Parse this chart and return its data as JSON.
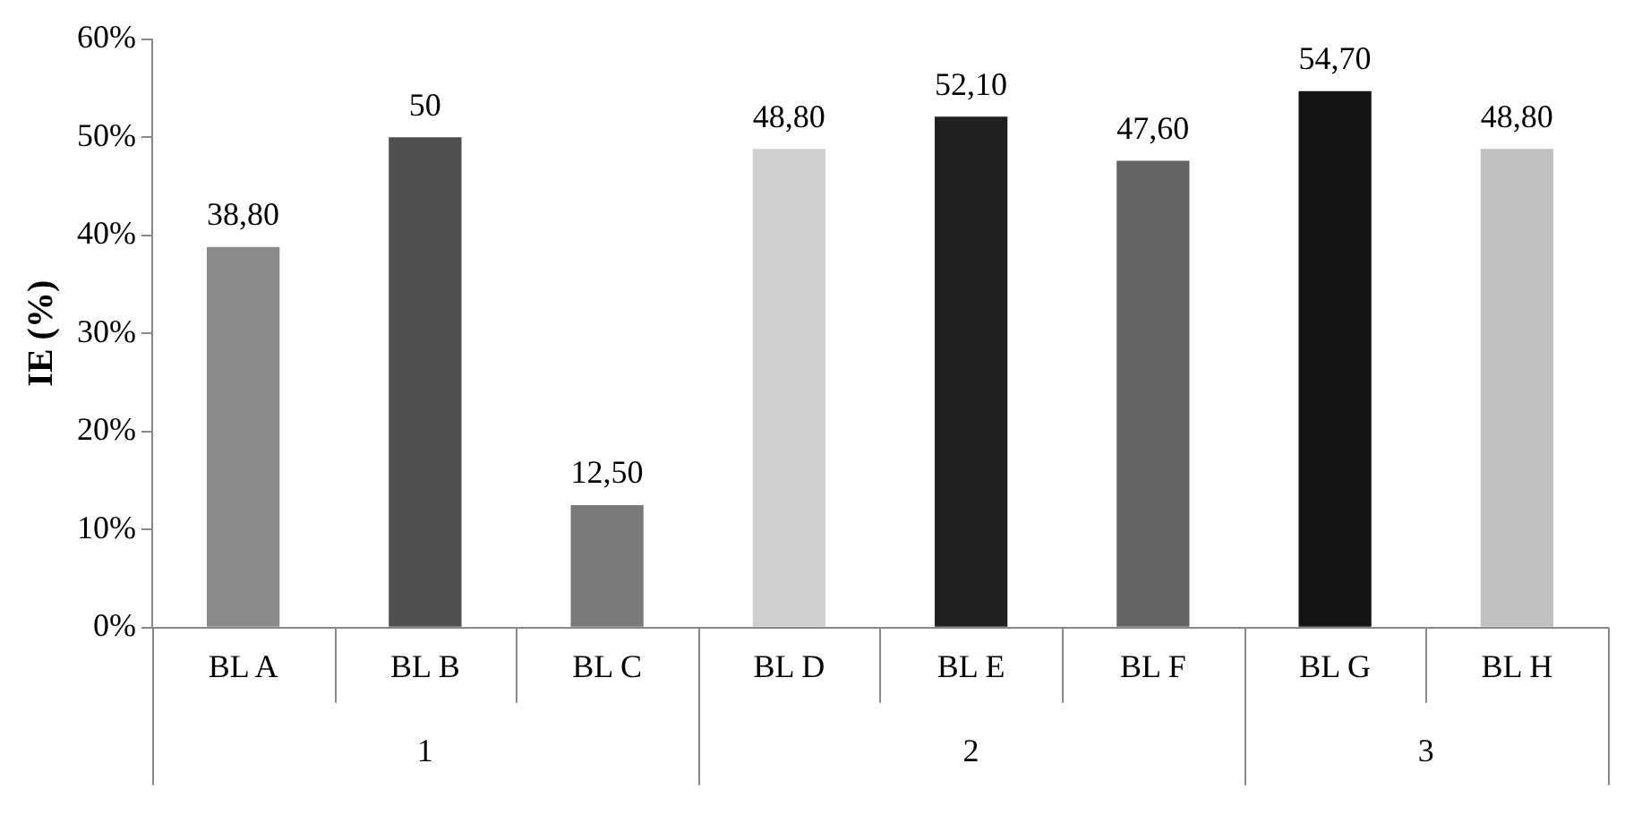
{
  "chart_data": {
    "type": "bar",
    "ylabel": "IE (%)",
    "categories": [
      "BL A",
      "BL B",
      "BL C",
      "BL D",
      "BL E",
      "BL F",
      "BL G",
      "BL H"
    ],
    "values": [
      38.8,
      50,
      12.5,
      48.8,
      52.1,
      47.6,
      54.7,
      48.8
    ],
    "value_labels": [
      "38,80",
      "50",
      "12,50",
      "48,80",
      "52,10",
      "47,60",
      "54,70",
      "48,80"
    ],
    "colors": [
      "#8a8a8a",
      "#4f4f4f",
      "#7a7a7a",
      "#d0d0d0",
      "#202020",
      "#646464",
      "#141414",
      "#c0c0c0"
    ],
    "ylim": [
      0,
      60
    ],
    "yticks": [
      {
        "value": 0,
        "label": "0%"
      },
      {
        "value": 10,
        "label": "10%"
      },
      {
        "value": 20,
        "label": "20%"
      },
      {
        "value": 30,
        "label": "30%"
      },
      {
        "value": 40,
        "label": "40%"
      },
      {
        "value": 50,
        "label": "50%"
      },
      {
        "value": 60,
        "label": "60%"
      }
    ],
    "annotations": [
      "1",
      "2",
      "3"
    ],
    "grid": false,
    "legend": false
  }
}
